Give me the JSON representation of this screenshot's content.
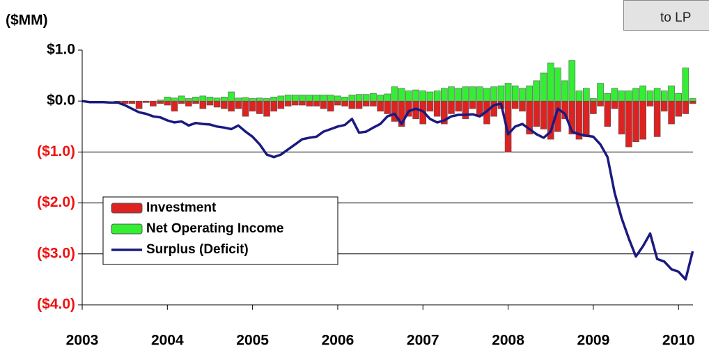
{
  "button_text": "to LP",
  "chart_data": {
    "type": "bar_line",
    "y_label": "($MM)",
    "xlim": [
      2003,
      2010.17
    ],
    "xticks": [
      2003,
      2004,
      2005,
      2006,
      2007,
      2008,
      2009,
      2010
    ],
    "ylim": [
      -4,
      1
    ],
    "yticks": [
      {
        "value": -4,
        "label": "($4.0)"
      },
      {
        "value": -3,
        "label": "($3.0)"
      },
      {
        "value": -2,
        "label": "($2.0)"
      },
      {
        "value": -1,
        "label": "($1.0)"
      },
      {
        "value": 0,
        "label": "$0.0"
      },
      {
        "value": 1,
        "label": "$1.0"
      }
    ],
    "grid": true,
    "legend": "lower-left",
    "x": [
      2003,
      2003.083,
      2003.167,
      2003.25,
      2003.333,
      2003.417,
      2003.5,
      2003.583,
      2003.667,
      2003.75,
      2003.833,
      2003.917,
      2004,
      2004.083,
      2004.167,
      2004.25,
      2004.333,
      2004.417,
      2004.5,
      2004.583,
      2004.667,
      2004.75,
      2004.833,
      2004.917,
      2005,
      2005.083,
      2005.167,
      2005.25,
      2005.333,
      2005.417,
      2005.5,
      2005.583,
      2005.667,
      2005.75,
      2005.833,
      2005.917,
      2006,
      2006.083,
      2006.167,
      2006.25,
      2006.333,
      2006.417,
      2006.5,
      2006.583,
      2006.667,
      2006.75,
      2006.833,
      2006.917,
      2007,
      2007.083,
      2007.167,
      2007.25,
      2007.333,
      2007.417,
      2007.5,
      2007.583,
      2007.667,
      2007.75,
      2007.833,
      2007.917,
      2008,
      2008.083,
      2008.167,
      2008.25,
      2008.333,
      2008.417,
      2008.5,
      2008.583,
      2008.667,
      2008.75,
      2008.833,
      2008.917,
      2009,
      2009.083,
      2009.167,
      2009.25,
      2009.333,
      2009.417,
      2009.5,
      2009.583,
      2009.667,
      2009.75,
      2009.833,
      2009.917,
      2010,
      2010.083,
      2010.167
    ],
    "series": [
      {
        "name": "Investment",
        "kind": "bar",
        "color": "#dd2222",
        "values": [
          0,
          0,
          0,
          0,
          0,
          -0.02,
          -0.05,
          -0.05,
          -0.15,
          -0.03,
          -0.1,
          -0.05,
          -0.08,
          -0.2,
          -0.05,
          -0.1,
          -0.05,
          -0.15,
          -0.08,
          -0.12,
          -0.15,
          -0.2,
          -0.15,
          -0.3,
          -0.2,
          -0.25,
          -0.3,
          -0.2,
          -0.15,
          -0.1,
          -0.08,
          -0.08,
          -0.1,
          -0.1,
          -0.15,
          -0.2,
          -0.08,
          -0.1,
          -0.15,
          -0.15,
          -0.1,
          -0.1,
          -0.2,
          -0.25,
          -0.4,
          -0.5,
          -0.3,
          -0.35,
          -0.45,
          -0.2,
          -0.3,
          -0.45,
          -0.25,
          -0.2,
          -0.35,
          -0.15,
          -0.3,
          -0.45,
          -0.3,
          -0.15,
          -1.0,
          -0.15,
          -0.2,
          -0.65,
          -0.5,
          -0.55,
          -0.75,
          -0.6,
          -0.35,
          -0.65,
          -0.75,
          -0.7,
          -0.25,
          -0.1,
          -0.5,
          -0.15,
          -0.65,
          -0.9,
          -0.8,
          -0.75,
          -0.1,
          -0.7,
          -0.2,
          -0.45,
          -0.3,
          -0.25,
          -0.05
        ]
      },
      {
        "name": "Net Operating Income",
        "kind": "bar",
        "color": "#33ee33",
        "values": [
          0,
          0,
          0,
          0,
          0,
          0,
          0,
          0,
          0,
          0,
          0,
          0.02,
          0.08,
          0.06,
          0.1,
          0.05,
          0.08,
          0.1,
          0.08,
          0.06,
          0.08,
          0.18,
          0.06,
          0.07,
          0.05,
          0.06,
          0.05,
          0.08,
          0.1,
          0.12,
          0.12,
          0.12,
          0.12,
          0.12,
          0.12,
          0.12,
          0.1,
          0.08,
          0.12,
          0.13,
          0.13,
          0.15,
          0.12,
          0.14,
          0.28,
          0.25,
          0.2,
          0.22,
          0.2,
          0.18,
          0.2,
          0.25,
          0.28,
          0.25,
          0.28,
          0.28,
          0.28,
          0.25,
          0.28,
          0.3,
          0.35,
          0.3,
          0.25,
          0.3,
          0.4,
          0.55,
          0.75,
          0.65,
          0.4,
          0.8,
          0.2,
          0.25,
          0.05,
          0.35,
          0.15,
          0.25,
          0.2,
          0.2,
          0.25,
          0.3,
          0.2,
          0.25,
          0.2,
          0.3,
          0.15,
          0.65,
          0.05
        ]
      },
      {
        "name": "Surplus (Deficit)",
        "kind": "line",
        "color": "#1a1a80",
        "values": [
          0,
          -0.02,
          -0.02,
          -0.02,
          -0.03,
          -0.03,
          -0.08,
          -0.15,
          -0.22,
          -0.25,
          -0.3,
          -0.32,
          -0.38,
          -0.42,
          -0.4,
          -0.48,
          -0.43,
          -0.45,
          -0.46,
          -0.5,
          -0.52,
          -0.55,
          -0.48,
          -0.6,
          -0.7,
          -0.85,
          -1.05,
          -1.1,
          -1.05,
          -0.95,
          -0.85,
          -0.75,
          -0.72,
          -0.7,
          -0.6,
          -0.55,
          -0.5,
          -0.47,
          -0.35,
          -0.62,
          -0.6,
          -0.52,
          -0.45,
          -0.3,
          -0.25,
          -0.45,
          -0.2,
          -0.15,
          -0.2,
          -0.35,
          -0.42,
          -0.38,
          -0.3,
          -0.27,
          -0.27,
          -0.26,
          -0.3,
          -0.2,
          -0.08,
          -0.05,
          -0.65,
          -0.5,
          -0.45,
          -0.55,
          -0.65,
          -0.72,
          -0.6,
          -0.15,
          -0.25,
          -0.6,
          -0.65,
          -0.68,
          -0.7,
          -0.85,
          -1.1,
          -1.8,
          -2.3,
          -2.7,
          -3.05,
          -2.85,
          -2.6,
          -3.1,
          -3.15,
          -3.3,
          -3.35,
          -3.5,
          -2.95
        ]
      }
    ]
  }
}
